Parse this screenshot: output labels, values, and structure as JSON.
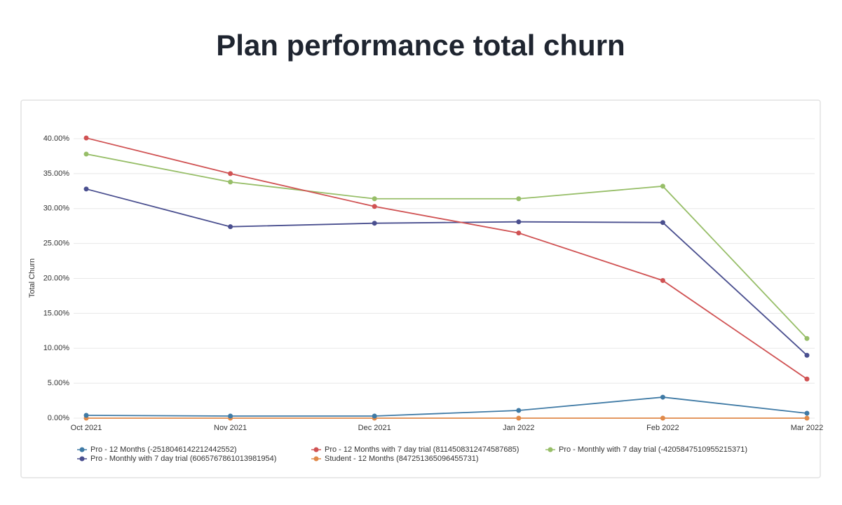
{
  "chart_data": {
    "type": "line",
    "title": "Plan performance total churn",
    "y_label": "Total Churn",
    "categories": [
      "Oct 2021",
      "Nov 2021",
      "Dec 2021",
      "Jan 2022",
      "Feb 2022",
      "Mar 2022"
    ],
    "series": [
      {
        "name": "Pro - 12 Months (-2518046142212442552)",
        "color": "#3f7aa5",
        "values": [
          0.4,
          0.3,
          0.3,
          1.1,
          3.0,
          0.7
        ]
      },
      {
        "name": "Pro - 12 Months with 7 day trial (8114508312474587685)",
        "color": "#d05253",
        "values": [
          40.1,
          35.0,
          30.3,
          26.5,
          19.7,
          5.6
        ]
      },
      {
        "name": "Pro - Monthly with 7 day trial (-4205847510955215371)",
        "color": "#97be68",
        "values": [
          37.8,
          33.8,
          31.4,
          31.4,
          33.2,
          11.4
        ]
      },
      {
        "name": "Pro - Monthly with 7 day trial (6065767861013981954)",
        "color": "#4a4f8f",
        "values": [
          32.8,
          27.4,
          27.9,
          28.1,
          28.0,
          9.0
        ]
      },
      {
        "name": "Student - 12 Months (847251365096455731)",
        "color": "#e08a4a",
        "values": [
          0,
          0,
          0,
          0,
          0,
          0
        ]
      }
    ],
    "ylim": [
      0,
      40
    ],
    "yticks": [
      {
        "value": 0,
        "label": "0.00%"
      },
      {
        "value": 5,
        "label": "5.00%"
      },
      {
        "value": 10,
        "label": "10.00%"
      },
      {
        "value": 15,
        "label": "15.00%"
      },
      {
        "value": 20,
        "label": "20.00%"
      },
      {
        "value": 25,
        "label": "25.00%"
      },
      {
        "value": 30,
        "label": "30.00%"
      },
      {
        "value": 35,
        "label": "35.00%"
      },
      {
        "value": 40,
        "label": "40.00%"
      }
    ],
    "grid": true,
    "legend": "bottom"
  }
}
